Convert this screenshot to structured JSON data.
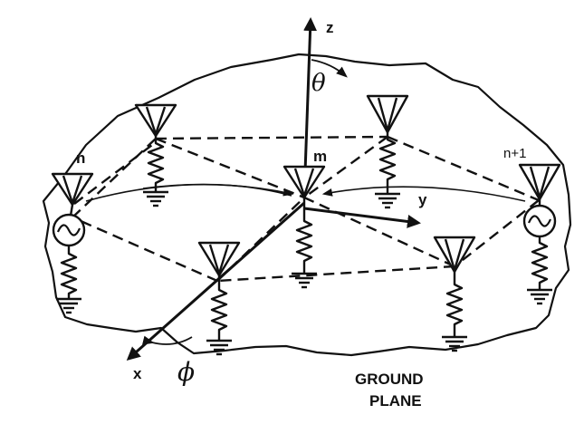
{
  "labels": {
    "z_axis": "z",
    "y_axis": "y",
    "x_axis": "x",
    "theta": "θ",
    "phi": "ϕ",
    "element_n": "n",
    "element_m": "m",
    "element_n1": "n+1",
    "ground_line1": "GROUND",
    "ground_line2": "PLANE"
  }
}
